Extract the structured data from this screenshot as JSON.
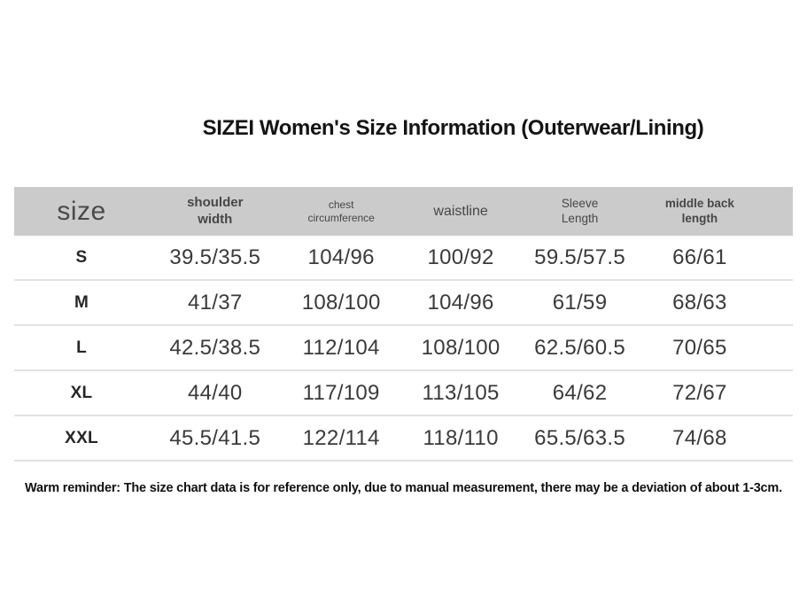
{
  "title": "SIZEI Women's Size Information (Outerwear/Lining)",
  "table": {
    "header": {
      "size_label": "size",
      "columns": [
        {
          "line1": "shoulder",
          "line2": "width"
        },
        {
          "line1": "chest",
          "line2": "circumference"
        },
        {
          "line1": "waistline",
          "line2": ""
        },
        {
          "line1": "Sleeve",
          "line2": "Length"
        },
        {
          "line1": "middle back",
          "line2": "length"
        }
      ]
    },
    "rows": [
      {
        "size": "S",
        "values": [
          "39.5/35.5",
          "104/96",
          "100/92",
          "59.5/57.5",
          "66/61"
        ]
      },
      {
        "size": "M",
        "values": [
          "41/37",
          "108/100",
          "104/96",
          "61/59",
          "68/63"
        ]
      },
      {
        "size": "L",
        "values": [
          "42.5/38.5",
          "112/104",
          "108/100",
          "62.5/60.5",
          "70/65"
        ]
      },
      {
        "size": "XL",
        "values": [
          "44/40",
          "117/109",
          "113/105",
          "64/62",
          "72/67"
        ]
      },
      {
        "size": "XXL",
        "values": [
          "45.5/41.5",
          "122/114",
          "118/110",
          "65.5/63.5",
          "74/68"
        ]
      }
    ]
  },
  "footer_note": "Warm reminder: The size chart data is for reference only, due to manual measurement, there may be a deviation of about 1-3cm.",
  "colors": {
    "header_bg": "#cbcbcb",
    "header_text": "#474747",
    "value_text": "#3a3a3a",
    "divider": "#e2e2e2",
    "title_text": "#141414"
  },
  "chart_data": {
    "type": "table",
    "title": "SIZEI Women's Size Information (Outerwear/Lining)",
    "columns": [
      "size",
      "shoulder width",
      "chest circumference",
      "waistline",
      "Sleeve Length",
      "middle back length"
    ],
    "rows": [
      [
        "S",
        "39.5/35.5",
        "104/96",
        "100/92",
        "59.5/57.5",
        "66/61"
      ],
      [
        "M",
        "41/37",
        "108/100",
        "104/96",
        "61/59",
        "68/63"
      ],
      [
        "L",
        "42.5/38.5",
        "112/104",
        "108/100",
        "62.5/60.5",
        "70/65"
      ],
      [
        "XL",
        "44/40",
        "117/109",
        "113/105",
        "64/62",
        "72/67"
      ],
      [
        "XXL",
        "45.5/41.5",
        "122/114",
        "118/110",
        "65.5/63.5",
        "74/68"
      ]
    ],
    "note": "Warm reminder: The size chart data is for reference only, due to manual measurement, there may be a deviation of about 1-3cm.",
    "layout": "header row gray (#cbcbcb), white body rows separated by light gray dividers, title centered above, reminder note centered below"
  }
}
